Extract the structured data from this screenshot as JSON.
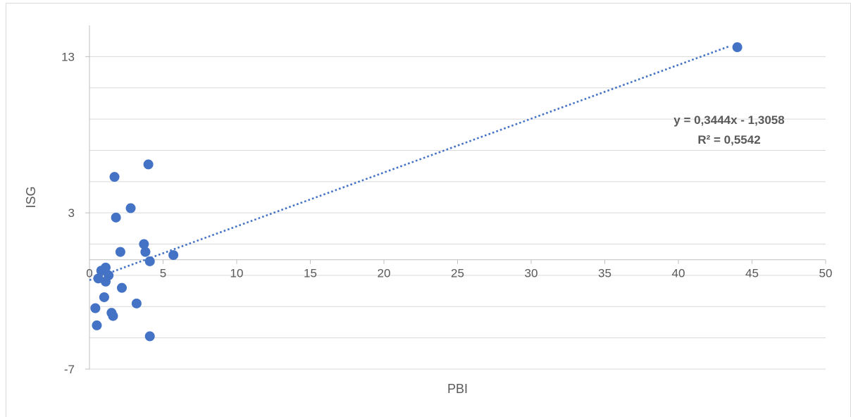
{
  "chart_data": {
    "type": "scatter",
    "xlabel": "PBI",
    "ylabel": "ISG",
    "xlim": [
      0,
      50
    ],
    "ylim": [
      -7,
      15
    ],
    "x_ticks": [
      0,
      5,
      10,
      15,
      20,
      25,
      30,
      35,
      40,
      45,
      50
    ],
    "y_ticks": [
      -7,
      3,
      13
    ],
    "y_gridlines": [
      -7,
      -5,
      -3,
      -1,
      1,
      3,
      5,
      7,
      9,
      11,
      13
    ],
    "grid": true,
    "series": [
      {
        "color": "#4472C4",
        "points": [
          {
            "x": 0.4,
            "y": -3.1
          },
          {
            "x": 0.5,
            "y": -4.2
          },
          {
            "x": 0.6,
            "y": -1.2
          },
          {
            "x": 0.8,
            "y": -0.7
          },
          {
            "x": 1.0,
            "y": -2.4
          },
          {
            "x": 1.1,
            "y": -0.5
          },
          {
            "x": 1.1,
            "y": -1.4
          },
          {
            "x": 1.3,
            "y": -1.0
          },
          {
            "x": 1.5,
            "y": -3.4
          },
          {
            "x": 1.6,
            "y": -3.6
          },
          {
            "x": 1.7,
            "y": 5.3
          },
          {
            "x": 1.8,
            "y": 2.7
          },
          {
            "x": 2.1,
            "y": 0.5
          },
          {
            "x": 2.2,
            "y": -1.8
          },
          {
            "x": 2.8,
            "y": 3.3
          },
          {
            "x": 3.2,
            "y": -2.8
          },
          {
            "x": 3.7,
            "y": 1.0
          },
          {
            "x": 3.8,
            "y": 0.5
          },
          {
            "x": 4.0,
            "y": 6.1
          },
          {
            "x": 4.1,
            "y": -0.1
          },
          {
            "x": 4.1,
            "y": -4.9
          },
          {
            "x": 5.7,
            "y": 0.3
          },
          {
            "x": 44.0,
            "y": 13.6
          }
        ]
      }
    ],
    "trendline": {
      "style": "dotted",
      "color": "#4472C4",
      "slope": 0.3444,
      "intercept": -1.3058,
      "x_range": [
        0,
        43.5
      ],
      "equation": "y = 0,3444x - 1,3058",
      "r_squared": "R² = 0,5542"
    }
  }
}
